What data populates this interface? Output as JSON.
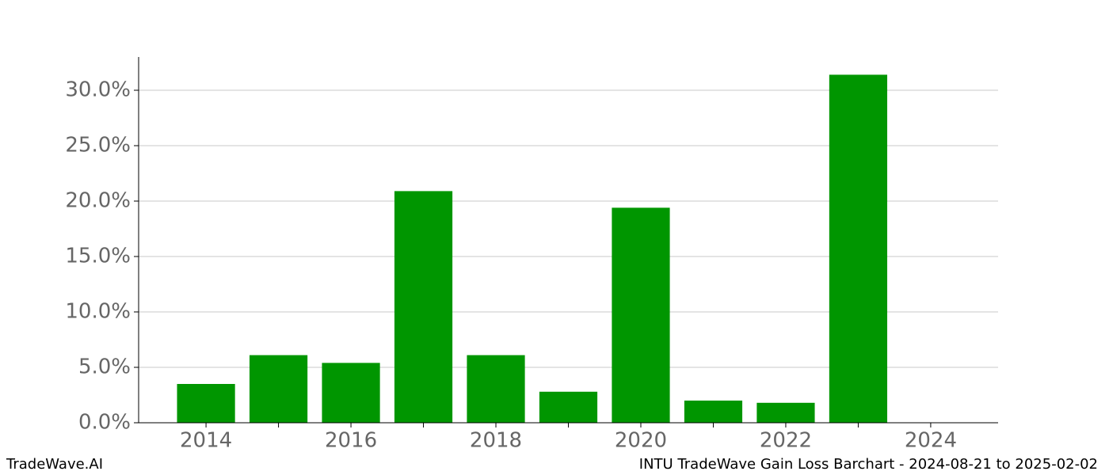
{
  "chart_data": {
    "type": "bar",
    "title": "INTU TradeWave Gain Loss Barchart - 2024-08-21 to 2025-02-02",
    "brand": "TradeWave.AI",
    "x": [
      2014,
      2015,
      2016,
      2017,
      2018,
      2019,
      2020,
      2021,
      2022,
      2023
    ],
    "values": [
      3.5,
      6.1,
      5.4,
      20.9,
      6.1,
      2.8,
      19.4,
      2.0,
      1.8,
      31.4
    ],
    "color": "#009600",
    "bar_width": 0.8,
    "xlim": [
      2013.07,
      2024.93
    ],
    "xticks": [
      2014,
      2016,
      2018,
      2020,
      2022,
      2024
    ],
    "xminorticks": [
      2015,
      2017,
      2019,
      2021,
      2023
    ],
    "ylim": [
      0,
      33
    ],
    "yticks": [
      {
        "value": 0,
        "label": "0.0%"
      },
      {
        "value": 5,
        "label": "5.0%"
      },
      {
        "value": 10,
        "label": "10.0%"
      },
      {
        "value": 15,
        "label": "15.0%"
      },
      {
        "value": 20,
        "label": "20.0%"
      },
      {
        "value": 25,
        "label": "25.0%"
      },
      {
        "value": 30,
        "label": "30.0%"
      }
    ],
    "grid": true
  }
}
